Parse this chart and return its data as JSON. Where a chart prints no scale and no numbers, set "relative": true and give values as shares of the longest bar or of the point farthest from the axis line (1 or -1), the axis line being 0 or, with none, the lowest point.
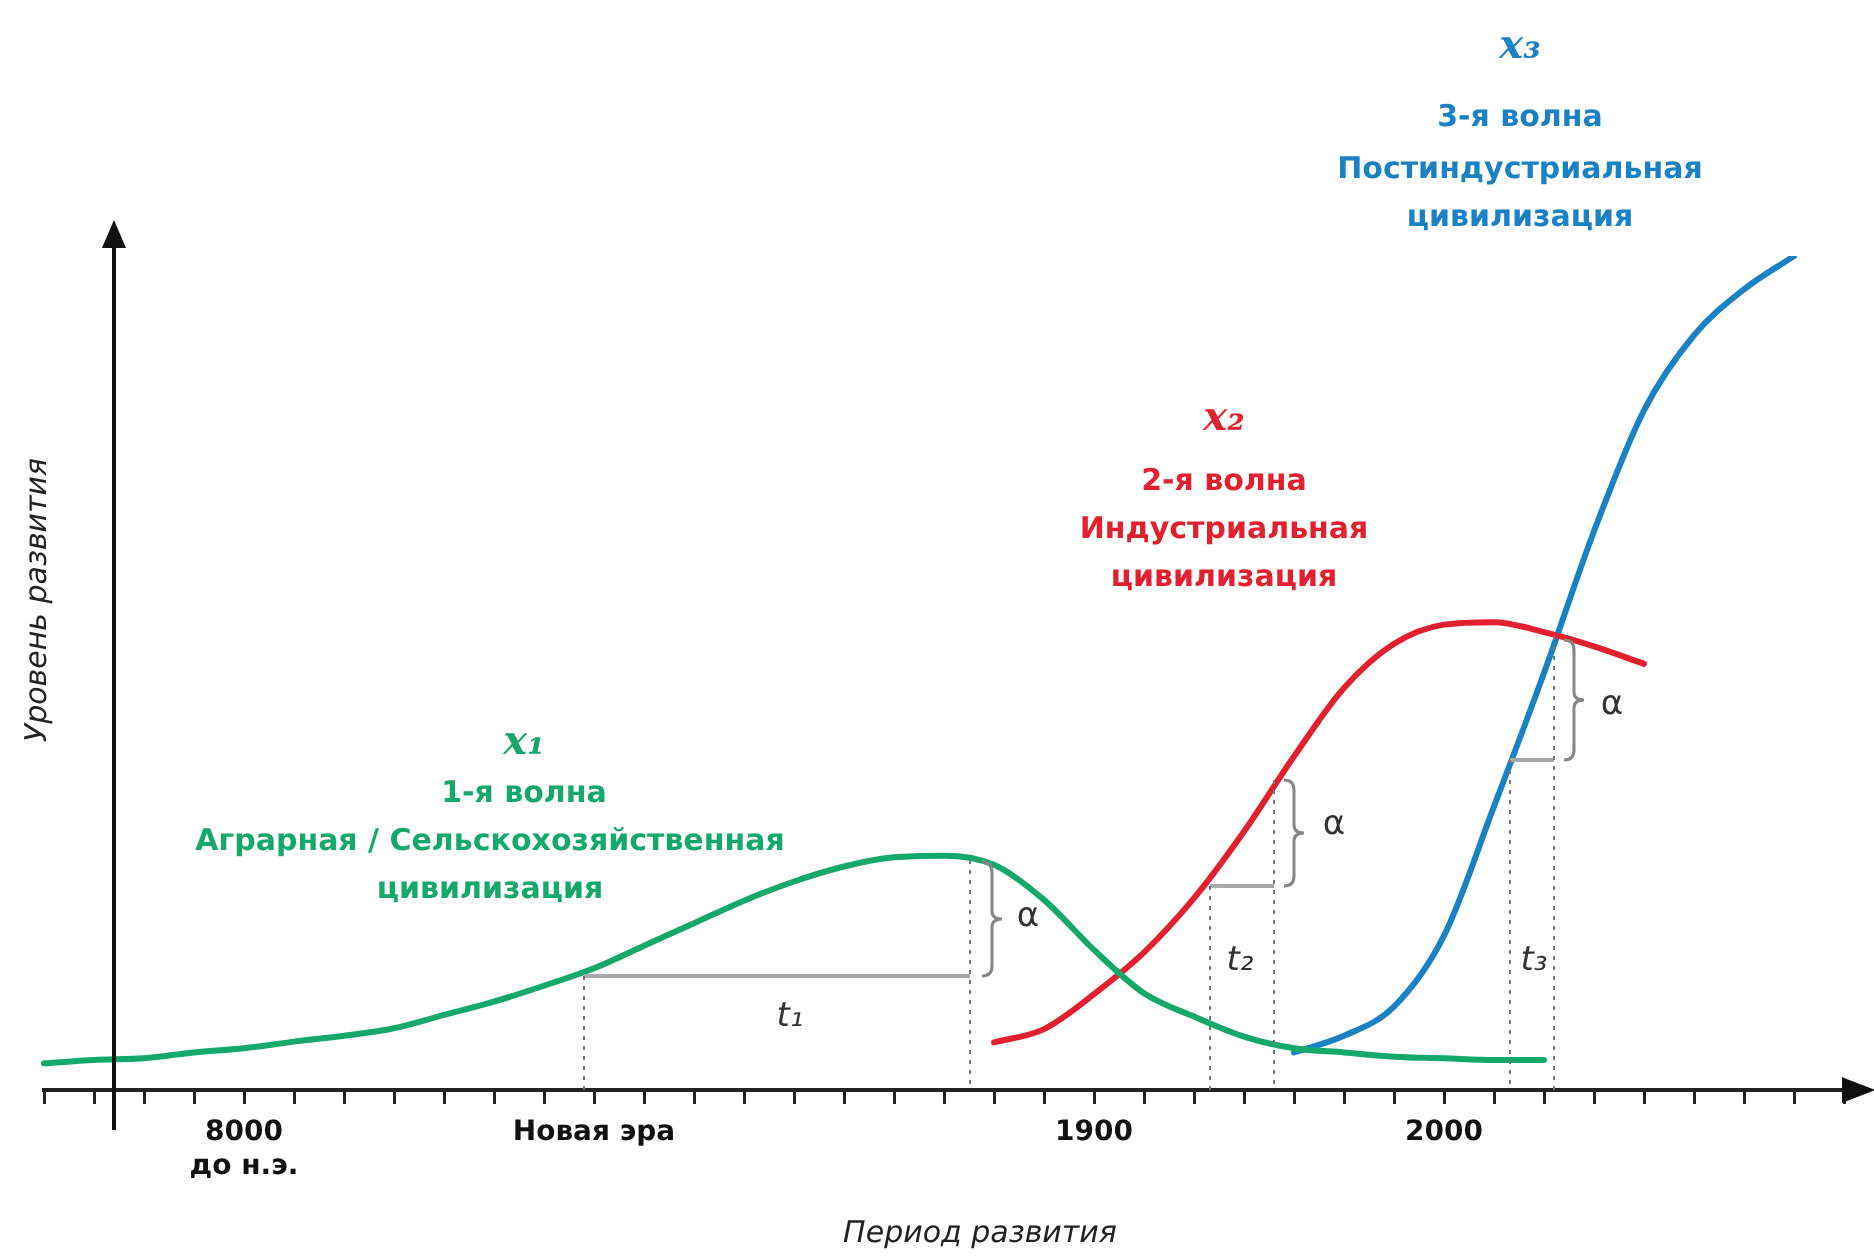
{
  "chart_data": {
    "type": "line",
    "relative": true,
    "xlabel": "Период развития",
    "ylabel": "Уровень развития",
    "categories": [
      null,
      null,
      null,
      null,
      "8000 до н.э.",
      null,
      null,
      null,
      null,
      null,
      null,
      "Новая эра",
      null,
      null,
      null,
      null,
      null,
      null,
      null,
      null,
      null,
      "1900",
      null,
      null,
      null,
      null,
      null,
      null,
      "2000",
      null,
      null,
      null,
      null,
      null,
      null,
      null,
      null
    ],
    "series": [
      {
        "color": "#14a86a",
        "values": [
          0.032,
          0.036,
          0.038,
          0.045,
          0.05,
          0.058,
          0.065,
          0.074,
          0.09,
          0.106,
          0.125,
          0.146,
          0.173,
          0.2,
          0.227,
          0.25,
          0.268,
          0.279,
          0.281,
          0.27,
          0.228,
          0.168,
          0.116,
          0.088,
          0.064,
          0.05,
          0.045,
          0.04,
          0.038,
          0.036,
          0.036,
          null,
          null,
          null,
          null,
          null,
          null
        ]
      },
      {
        "color": "#e2202f",
        "values": [
          null,
          null,
          null,
          null,
          null,
          null,
          null,
          null,
          null,
          null,
          null,
          null,
          null,
          null,
          null,
          null,
          null,
          null,
          null,
          0.057,
          0.073,
          0.115,
          0.165,
          0.23,
          0.31,
          0.4,
          0.482,
          0.535,
          0.558,
          0.561,
          0.549,
          0.532,
          0.511,
          null,
          null,
          null,
          null
        ]
      },
      {
        "color": "#1a82c4",
        "values": [
          null,
          null,
          null,
          null,
          null,
          null,
          null,
          null,
          null,
          null,
          null,
          null,
          null,
          null,
          null,
          null,
          null,
          null,
          null,
          null,
          null,
          null,
          null,
          null,
          null,
          0.045,
          0.065,
          0.1,
          0.185,
          0.34,
          0.5,
          0.67,
          0.815,
          0.905,
          0.96,
          1,
          null
        ]
      }
    ],
    "annotations": [
      "x₁",
      "1-я волна",
      "Аграрная / Сельскохозяйственная",
      "цивилизация",
      "x₂",
      "2-я волна",
      "Индустриальная",
      "цивилизация",
      "x₃",
      "3-я волна",
      "Постиндустриальная",
      "цивилизация",
      "t₁",
      "α",
      "t₂",
      "α",
      "t₃",
      "α"
    ],
    "grid": false,
    "legend": false,
    "marker": "none",
    "line_style": "solid"
  }
}
